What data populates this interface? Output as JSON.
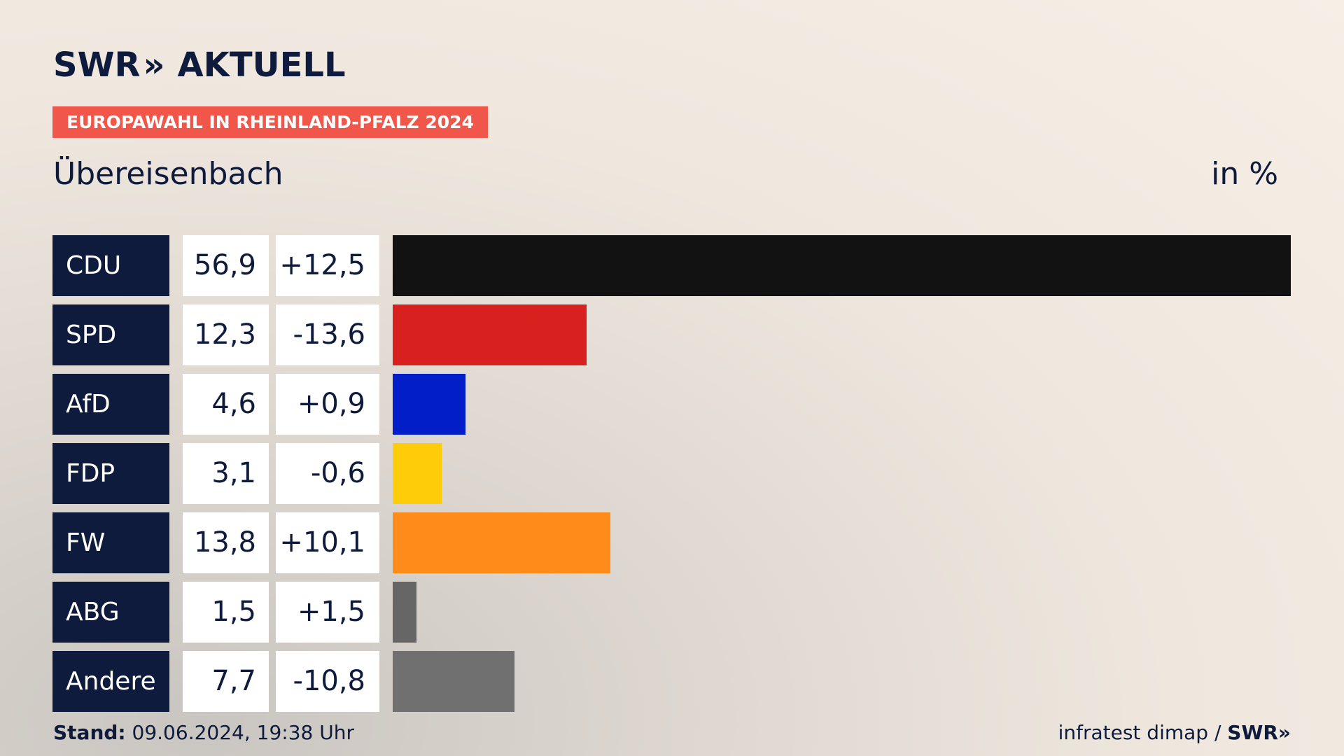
{
  "brand": {
    "name_left": "SWR",
    "chevrons": "»",
    "name_right": "AKTUELL"
  },
  "tag": "EUROPAWAHL IN RHEINLAND-PFALZ 2024",
  "place": "Übereisenbach",
  "unit": "in %",
  "footer": {
    "stand_label": "Stand:",
    "stand_value": "09.06.2024, 19:38 Uhr",
    "source": "infratest dimap / ",
    "source_brand": "SWR»"
  },
  "chart_data": {
    "type": "bar",
    "orientation": "horizontal",
    "categories": [
      "CDU",
      "SPD",
      "AfD",
      "FDP",
      "FW",
      "ABG",
      "Andere"
    ],
    "values": [
      56.9,
      12.3,
      4.6,
      3.1,
      13.8,
      1.5,
      7.7
    ],
    "value_labels": [
      "56,9",
      "12,3",
      "4,6",
      "3,1",
      "13,8",
      "1,5",
      "7,7"
    ],
    "diff_labels": [
      "+12,5",
      "-13,6",
      "+0,9",
      "-0,6",
      "+10,1",
      "+1,5",
      "-10,8"
    ],
    "colors": [
      "#121212",
      "#d8201e",
      "#011ec8",
      "#ffcc0a",
      "#ff8c1a",
      "#666666",
      "#707070"
    ],
    "xlim": [
      0,
      56.9
    ]
  }
}
